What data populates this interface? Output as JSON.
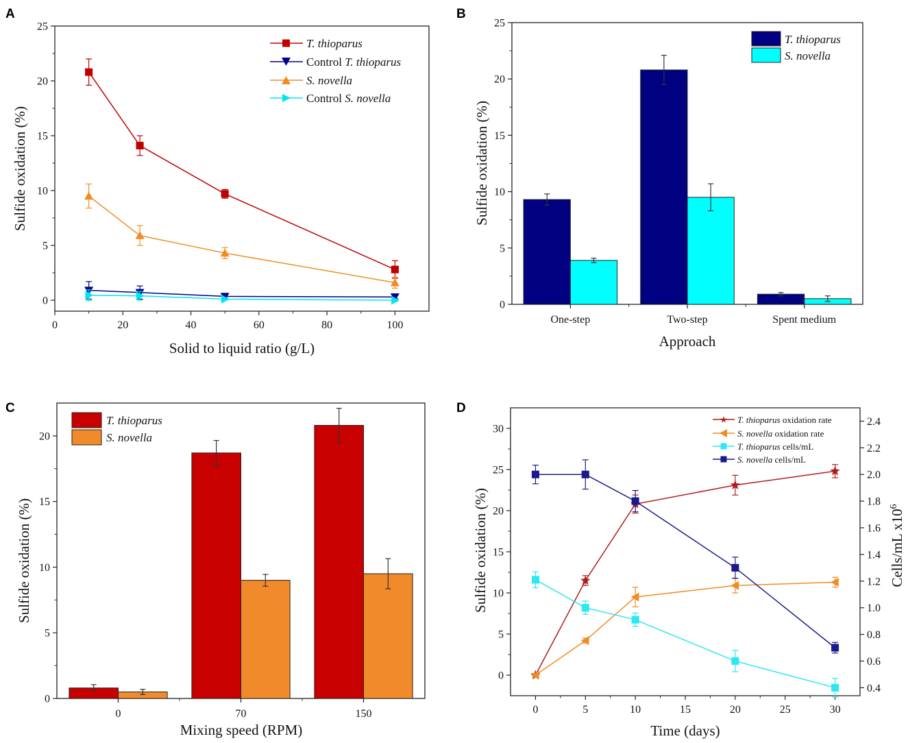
{
  "chart_data": [
    {
      "panel": "A",
      "type": "line",
      "xlabel": "Solid to liquid ratio (g/L)",
      "ylabel": "Sulfide oxidation (%)",
      "xlim": [
        0,
        110
      ],
      "ylim": [
        -1,
        25
      ],
      "xticks": [
        0,
        20,
        40,
        60,
        80,
        100
      ],
      "yticks": [
        0,
        5,
        10,
        15,
        20,
        25
      ],
      "x": [
        10,
        25,
        50,
        100
      ],
      "legend_position": "top-right",
      "series": [
        {
          "prefix": "",
          "name": "T. thioparus",
          "color": "#c00000",
          "marker": "square",
          "values": [
            20.8,
            14.1,
            9.7,
            2.8
          ],
          "errors": [
            1.2,
            0.9,
            0.4,
            0.8
          ]
        },
        {
          "prefix": "Control ",
          "name": "T. thioparus",
          "color": "#00008b",
          "marker": "triangle-down",
          "values": [
            0.9,
            0.7,
            0.35,
            0.3
          ],
          "errors": [
            0.8,
            0.6,
            0.15,
            0.15
          ]
        },
        {
          "prefix": "",
          "name": "S. novella",
          "color": "#f08c23",
          "marker": "triangle-up",
          "values": [
            9.5,
            5.9,
            4.3,
            1.6
          ],
          "errors": [
            1.1,
            0.9,
            0.5,
            0.5
          ]
        },
        {
          "prefix": "Control ",
          "name": "S. novella",
          "color": "#00e5ee",
          "marker": "triangle-right",
          "values": [
            0.45,
            0.4,
            0.1,
            0.0
          ],
          "errors": [
            0.5,
            0.4,
            0.1,
            0.1
          ]
        }
      ]
    },
    {
      "panel": "B",
      "type": "bar",
      "xlabel": "Approach",
      "ylabel": "Sulfide oxidation (%)",
      "ylim": [
        0,
        25
      ],
      "yticks": [
        0,
        5,
        10,
        15,
        20,
        25
      ],
      "categories": [
        "One-step",
        "Two-step",
        "Spent medium"
      ],
      "legend_position": "top-right",
      "series": [
        {
          "name": "T. thioparus",
          "color": "#000080",
          "values": [
            9.3,
            20.8,
            0.9
          ],
          "errors": [
            0.5,
            1.3,
            0.15
          ]
        },
        {
          "name": "S. novella",
          "color": "#00ffff",
          "values": [
            3.9,
            9.5,
            0.5
          ],
          "errors": [
            0.2,
            1.2,
            0.25
          ]
        }
      ]
    },
    {
      "panel": "C",
      "type": "bar",
      "xlabel": "Mixing speed (RPM)",
      "ylabel": "Sulfide oxidation (%)",
      "ylim": [
        0,
        22.5
      ],
      "yticks": [
        0,
        5,
        10,
        15,
        20
      ],
      "categories": [
        "0",
        "70",
        "150"
      ],
      "legend_position": "top-left",
      "series": [
        {
          "name": "T. thioparus",
          "color": "#c80000",
          "values": [
            0.8,
            18.7,
            20.8
          ],
          "errors": [
            0.25,
            0.95,
            1.3
          ]
        },
        {
          "name": "S. novella",
          "color": "#f08a2a",
          "values": [
            0.5,
            9.0,
            9.5
          ],
          "errors": [
            0.2,
            0.45,
            1.15
          ]
        }
      ]
    },
    {
      "panel": "D",
      "type": "line",
      "xlabel": "Time (days)",
      "ylabel": "Sulfide oxidation (%)",
      "ylabel_right_base": "Cells/mL x10",
      "ylabel_right_exp": "6",
      "xlim": [
        -2.5,
        32.5
      ],
      "ylim": [
        -2.5,
        32.5
      ],
      "ylim_right": [
        0.34,
        2.5
      ],
      "xticks": [
        0,
        5,
        10,
        15,
        20,
        25,
        30
      ],
      "yticks": [
        0,
        5,
        10,
        15,
        20,
        25,
        30
      ],
      "yticks_right": [
        "0.4",
        "0.6",
        "0.8",
        "1.0",
        "1.2",
        "1.4",
        "1.6",
        "1.8",
        "2.0",
        "2.2",
        "2.4"
      ],
      "x": [
        0,
        5,
        10,
        20,
        30
      ],
      "legend_position": "top-right",
      "series": [
        {
          "name": "T. thioparus",
          "suffix": " oxidation rate",
          "color": "#b01c1c",
          "marker": "star",
          "axis": "left",
          "values": [
            0,
            11.5,
            20.8,
            23.1,
            24.8
          ],
          "errors": [
            0.2,
            0.6,
            1.1,
            1.2,
            0.8
          ]
        },
        {
          "name": "S. novella",
          "suffix": " oxidation rate",
          "color": "#f08c23",
          "marker": "triangle-left",
          "axis": "left",
          "values": [
            0,
            4.2,
            9.5,
            10.9,
            11.3
          ],
          "errors": [
            0.2,
            0.3,
            1.2,
            0.9,
            0.6
          ]
        },
        {
          "name": "T. thioparus",
          "suffix": " cells/mL",
          "color": "#2ce8f0",
          "marker": "square",
          "axis": "right",
          "values": [
            1.21,
            1.0,
            0.91,
            0.6,
            0.4
          ],
          "errors": [
            0.06,
            0.05,
            0.05,
            0.08,
            0.07
          ]
        },
        {
          "name": "S. novella",
          "suffix": " cells/mL",
          "color": "#1a1a8c",
          "marker": "square",
          "axis": "right",
          "values": [
            2.0,
            2.0,
            1.8,
            1.3,
            0.7
          ],
          "errors": [
            0.07,
            0.11,
            0.08,
            0.08,
            0.04
          ]
        }
      ]
    }
  ]
}
